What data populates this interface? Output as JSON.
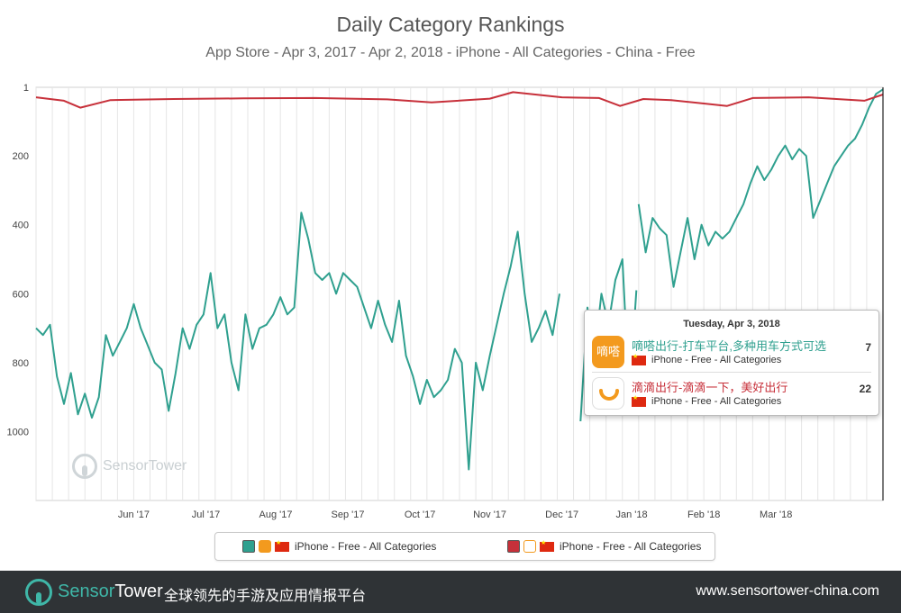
{
  "title": "Daily Category Rankings",
  "subtitle": "App Store - Apr 3, 2017 - Apr 2, 2018 - iPhone - All Categories - China - Free",
  "watermark": {
    "brand": "SensorTower"
  },
  "colors": {
    "teal": "#2fa08f",
    "red": "#c7303a",
    "grid": "#e6e6e6"
  },
  "chart_data": {
    "type": "line",
    "x_range": [
      "2017-04-03",
      "2018-04-02"
    ],
    "ylim": [
      1,
      1200
    ],
    "y_reversed": true,
    "y_ticks": [
      "1",
      "200",
      "400",
      "600",
      "800",
      "1000"
    ],
    "x_tick_labels": [
      "Jun '17",
      "Jul '17",
      "Aug '17",
      "Sep '17",
      "Oct '17",
      "Nov '17",
      "Dec '17",
      "Jan '18",
      "Feb '18",
      "Mar '18"
    ],
    "grid": true,
    "legend_position": "bottom",
    "series": [
      {
        "color": "#2fa08f",
        "points": [
          [
            "2017-04-03",
            700
          ],
          [
            "2017-04-06",
            720
          ],
          [
            "2017-04-09",
            690
          ],
          [
            "2017-04-12",
            840
          ],
          [
            "2017-04-15",
            920
          ],
          [
            "2017-04-18",
            830
          ],
          [
            "2017-04-21",
            950
          ],
          [
            "2017-04-24",
            890
          ],
          [
            "2017-04-27",
            960
          ],
          [
            "2017-04-30",
            900
          ],
          [
            "2017-05-03",
            720
          ],
          [
            "2017-05-06",
            780
          ],
          [
            "2017-05-09",
            740
          ],
          [
            "2017-05-12",
            700
          ],
          [
            "2017-05-15",
            630
          ],
          [
            "2017-05-18",
            700
          ],
          [
            "2017-05-21",
            750
          ],
          [
            "2017-05-24",
            800
          ],
          [
            "2017-05-27",
            820
          ],
          [
            "2017-05-30",
            940
          ],
          [
            "2017-06-02",
            830
          ],
          [
            "2017-06-05",
            700
          ],
          [
            "2017-06-08",
            760
          ],
          [
            "2017-06-11",
            690
          ],
          [
            "2017-06-14",
            660
          ],
          [
            "2017-06-17",
            540
          ],
          [
            "2017-06-20",
            700
          ],
          [
            "2017-06-23",
            660
          ],
          [
            "2017-06-26",
            800
          ],
          [
            "2017-06-29",
            880
          ],
          [
            "2017-07-02",
            660
          ],
          [
            "2017-07-05",
            760
          ],
          [
            "2017-07-08",
            700
          ],
          [
            "2017-07-11",
            690
          ],
          [
            "2017-07-14",
            660
          ],
          [
            "2017-07-17",
            610
          ],
          [
            "2017-07-20",
            660
          ],
          [
            "2017-07-23",
            640
          ],
          [
            "2017-07-26",
            365
          ],
          [
            "2017-07-29",
            440
          ],
          [
            "2017-08-01",
            540
          ],
          [
            "2017-08-04",
            560
          ],
          [
            "2017-08-07",
            540
          ],
          [
            "2017-08-10",
            600
          ],
          [
            "2017-08-13",
            540
          ],
          [
            "2017-08-16",
            560
          ],
          [
            "2017-08-19",
            580
          ],
          [
            "2017-08-22",
            640
          ],
          [
            "2017-08-25",
            700
          ],
          [
            "2017-08-28",
            620
          ],
          [
            "2017-08-31",
            690
          ],
          [
            "2017-09-03",
            740
          ],
          [
            "2017-09-06",
            620
          ],
          [
            "2017-09-09",
            780
          ],
          [
            "2017-09-12",
            840
          ],
          [
            "2017-09-15",
            920
          ],
          [
            "2017-09-18",
            850
          ],
          [
            "2017-09-21",
            900
          ],
          [
            "2017-09-24",
            880
          ],
          [
            "2017-09-27",
            850
          ],
          [
            "2017-09-30",
            760
          ],
          [
            "2017-10-03",
            800
          ],
          [
            "2017-10-06",
            1110
          ],
          [
            "2017-10-09",
            800
          ],
          [
            "2017-10-12",
            880
          ],
          [
            "2017-10-15",
            780
          ],
          [
            "2017-10-18",
            690
          ],
          [
            "2017-10-21",
            600
          ],
          [
            "2017-10-24",
            520
          ],
          [
            "2017-10-27",
            420
          ],
          [
            "2017-10-30",
            600
          ],
          [
            "2017-11-02",
            740
          ],
          [
            "2017-11-05",
            700
          ],
          [
            "2017-11-08",
            650
          ],
          [
            "2017-11-11",
            720
          ],
          [
            "2017-11-14",
            600
          ]
        ]
      },
      {
        "color": "#2fa08f",
        "points": [
          [
            "2017-11-23",
            970
          ],
          [
            "2017-11-26",
            640
          ],
          [
            "2017-11-29",
            780
          ],
          [
            "2017-12-02",
            600
          ],
          [
            "2017-12-05",
            690
          ],
          [
            "2017-12-08",
            560
          ],
          [
            "2017-12-11",
            500
          ],
          [
            "2017-12-14",
            900
          ],
          [
            "2017-12-17",
            590
          ]
        ]
      },
      {
        "color": "#2fa08f",
        "points": [
          [
            "2017-12-18",
            340
          ],
          [
            "2017-12-21",
            480
          ],
          [
            "2017-12-24",
            380
          ],
          [
            "2017-12-27",
            410
          ],
          [
            "2017-12-30",
            430
          ],
          [
            "2018-01-02",
            580
          ],
          [
            "2018-01-05",
            480
          ],
          [
            "2018-01-08",
            380
          ],
          [
            "2018-01-11",
            500
          ],
          [
            "2018-01-14",
            400
          ],
          [
            "2018-01-17",
            460
          ],
          [
            "2018-01-20",
            420
          ],
          [
            "2018-01-23",
            440
          ],
          [
            "2018-01-26",
            420
          ],
          [
            "2018-01-29",
            380
          ],
          [
            "2018-02-01",
            340
          ],
          [
            "2018-02-04",
            280
          ],
          [
            "2018-02-07",
            230
          ],
          [
            "2018-02-10",
            270
          ],
          [
            "2018-02-13",
            240
          ],
          [
            "2018-02-16",
            200
          ],
          [
            "2018-02-19",
            170
          ],
          [
            "2018-02-22",
            210
          ],
          [
            "2018-02-25",
            180
          ],
          [
            "2018-02-28",
            200
          ],
          [
            "2018-03-03",
            380
          ],
          [
            "2018-03-06",
            330
          ],
          [
            "2018-03-09",
            280
          ],
          [
            "2018-03-12",
            230
          ],
          [
            "2018-03-15",
            200
          ],
          [
            "2018-03-18",
            170
          ],
          [
            "2018-03-21",
            150
          ],
          [
            "2018-03-24",
            110
          ],
          [
            "2018-03-27",
            60
          ],
          [
            "2018-03-30",
            20
          ],
          [
            "2018-04-02",
            7
          ]
        ]
      },
      {
        "color": "#c7303a",
        "points": [
          [
            "2017-04-03",
            30
          ],
          [
            "2017-04-15",
            40
          ],
          [
            "2017-04-22",
            60
          ],
          [
            "2017-05-05",
            38
          ],
          [
            "2017-06-01",
            35
          ],
          [
            "2017-07-01",
            33
          ],
          [
            "2017-08-01",
            32
          ],
          [
            "2017-09-01",
            36
          ],
          [
            "2017-09-20",
            45
          ],
          [
            "2017-10-15",
            34
          ],
          [
            "2017-10-25",
            15
          ],
          [
            "2017-11-15",
            30
          ],
          [
            "2017-12-01",
            32
          ],
          [
            "2017-12-10",
            55
          ],
          [
            "2017-12-20",
            35
          ],
          [
            "2018-01-01",
            38
          ],
          [
            "2018-01-15",
            48
          ],
          [
            "2018-01-25",
            55
          ],
          [
            "2018-02-05",
            32
          ],
          [
            "2018-03-01",
            30
          ],
          [
            "2018-03-25",
            40
          ],
          [
            "2018-04-02",
            22
          ]
        ]
      }
    ]
  },
  "legend": {
    "items": [
      {
        "label": "iPhone - Free - All Categories",
        "color": "#2fa08f"
      },
      {
        "label": "iPhone - Free - All Categories",
        "color": "#c7303a"
      }
    ]
  },
  "tooltip": {
    "date": "Tuesday, Apr 3, 2018",
    "rows": [
      {
        "app_name": "嘀嗒出行-打车平台,多种用车方式可选",
        "icon_text": "嘀嗒",
        "sub": "iPhone - Free - All Categories",
        "rank": "7",
        "color": "#2fa08f"
      },
      {
        "app_name": "滴滴出行-滴滴一下，美好出行",
        "sub": "iPhone - Free - All Categories",
        "rank": "22",
        "color": "#c7303a"
      }
    ]
  },
  "footer": {
    "brand_a": "Sensor",
    "brand_b": "Tower",
    "slogan": "全球领先的手游及应用情报平台",
    "url": "www.sensortower-china.com"
  }
}
